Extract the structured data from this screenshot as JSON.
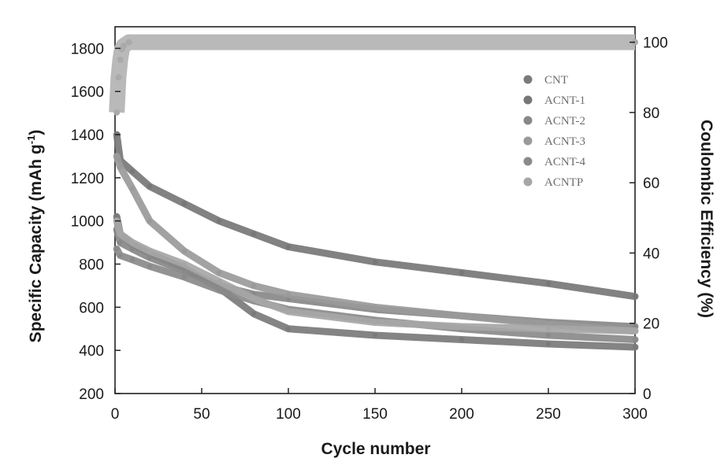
{
  "chart_data": {
    "type": "line",
    "title": "",
    "xlabel": "Cycle number",
    "ylabel": "Specific Capacity (mAh g",
    "ylabel_sup": "-1",
    "ylabel_end": ")",
    "y2label": "Coulombic Efficiency (%)",
    "xlim": [
      0,
      300
    ],
    "ylim": [
      200,
      1900
    ],
    "y2lim": [
      0,
      104.4
    ],
    "xticks": [
      "0",
      "50",
      "100",
      "150",
      "200",
      "250",
      "300"
    ],
    "yticks": [
      "200",
      "400",
      "600",
      "800",
      "1000",
      "1200",
      "1400",
      "1600",
      "1800"
    ],
    "y2ticks": [
      "0",
      "20",
      "40",
      "60",
      "80",
      "100"
    ],
    "legend_position": "top-right",
    "series": [
      {
        "name": "CNT",
        "color": "#7a7a7a",
        "x": [
          1,
          3,
          10,
          20,
          40,
          60,
          80,
          100,
          150,
          200,
          250,
          300
        ],
        "values": [
          1020,
          940,
          890,
          850,
          780,
          690,
          570,
          500,
          470,
          450,
          430,
          415
        ]
      },
      {
        "name": "ACNT-1",
        "color": "#777777",
        "x": [
          1,
          3,
          10,
          20,
          40,
          60,
          80,
          100,
          150,
          200,
          250,
          300
        ],
        "values": [
          1400,
          1280,
          1230,
          1160,
          1080,
          1000,
          940,
          880,
          810,
          760,
          710,
          650
        ]
      },
      {
        "name": "ACNT-2",
        "color": "#888888",
        "x": [
          1,
          3,
          10,
          20,
          40,
          60,
          80,
          100,
          150,
          200,
          250,
          300
        ],
        "values": [
          960,
          900,
          870,
          830,
          770,
          700,
          660,
          640,
          590,
          560,
          530,
          510
        ]
      },
      {
        "name": "ACNT-3",
        "color": "#9a9a9a",
        "x": [
          1,
          3,
          10,
          20,
          40,
          60,
          80,
          100,
          150,
          200,
          250,
          300
        ],
        "values": [
          1300,
          1250,
          1150,
          1000,
          860,
          760,
          700,
          660,
          600,
          560,
          520,
          490
        ]
      },
      {
        "name": "ACNT-4",
        "color": "#8a8a8a",
        "x": [
          1,
          3,
          10,
          20,
          40,
          60,
          80,
          100,
          150,
          200,
          250,
          300
        ],
        "values": [
          870,
          840,
          820,
          790,
          740,
          680,
          630,
          590,
          540,
          500,
          470,
          450
        ]
      },
      {
        "name": "ACNTP",
        "color": "#a6a6a6",
        "x": [
          1,
          3,
          10,
          20,
          40,
          60,
          80,
          100,
          150,
          200,
          250,
          300
        ],
        "values": [
          1000,
          940,
          900,
          860,
          800,
          720,
          640,
          580,
          530,
          510,
          500,
          490
        ]
      }
    ],
    "efficiency": {
      "x": [
        1,
        2,
        3,
        4,
        5,
        8,
        300
      ],
      "values": [
        80,
        90,
        95,
        98,
        99,
        100,
        100
      ]
    }
  }
}
